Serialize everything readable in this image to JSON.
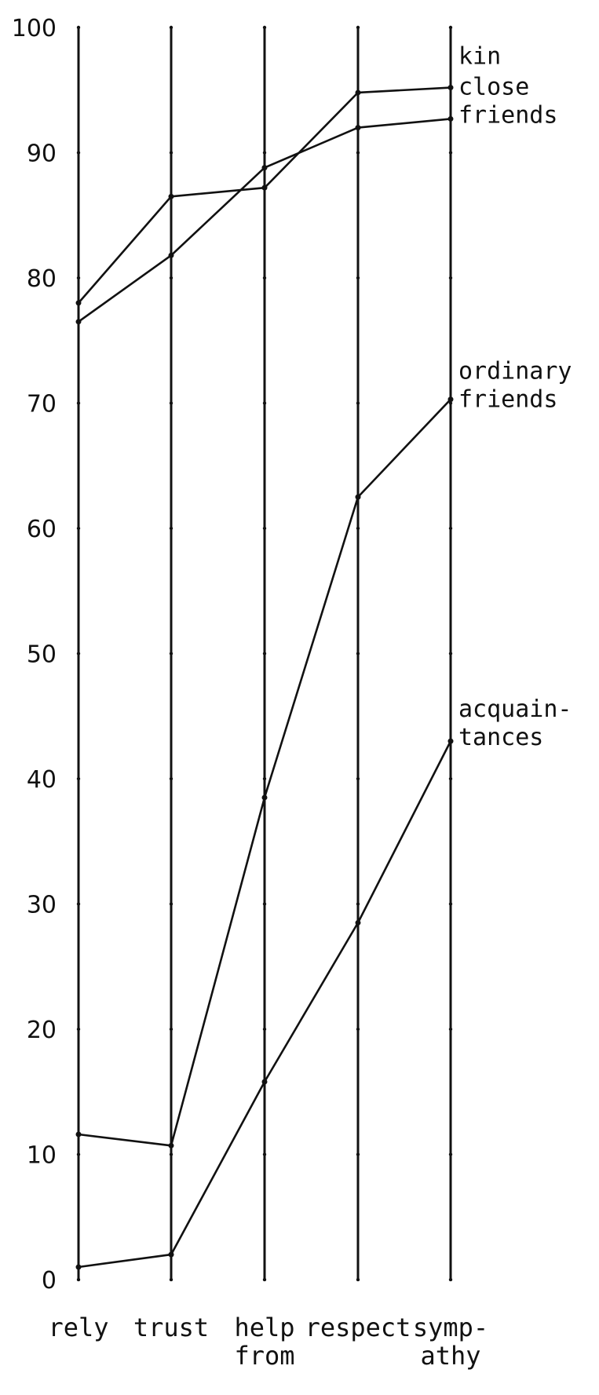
{
  "chart_data": {
    "type": "line",
    "categories": [
      "rely",
      "trust",
      "help from",
      "respect",
      "symp- athy"
    ],
    "category_lines": [
      [
        "rely"
      ],
      [
        "trust"
      ],
      [
        "help",
        "from"
      ],
      [
        "respect"
      ],
      [
        "symp-",
        "athy"
      ]
    ],
    "ylim": [
      0,
      100
    ],
    "yticks": [
      0,
      10,
      20,
      30,
      40,
      50,
      60,
      70,
      80,
      90,
      100
    ],
    "ytick_labels": [
      "0",
      "10",
      "20",
      "30",
      "40",
      "50",
      "60",
      "70",
      "80",
      "90",
      "100"
    ],
    "grid": false,
    "series": [
      {
        "name": "kin",
        "label_lines": [
          "kin"
        ],
        "values": [
          78,
          86.5,
          87.2,
          94.8,
          95.2
        ]
      },
      {
        "name": "close friends",
        "label_lines": [
          "close",
          "friends"
        ],
        "values": [
          76.5,
          81.8,
          88.8,
          92,
          92.7
        ]
      },
      {
        "name": "ordinary friends",
        "label_lines": [
          "ordinary",
          "friends"
        ],
        "values": [
          11.6,
          10.7,
          38.5,
          62.5,
          70.3
        ]
      },
      {
        "name": "acquaintances",
        "label_lines": [
          "acquain-",
          "tances"
        ],
        "values": [
          1,
          2,
          15.8,
          28.5,
          43
        ]
      }
    ]
  }
}
